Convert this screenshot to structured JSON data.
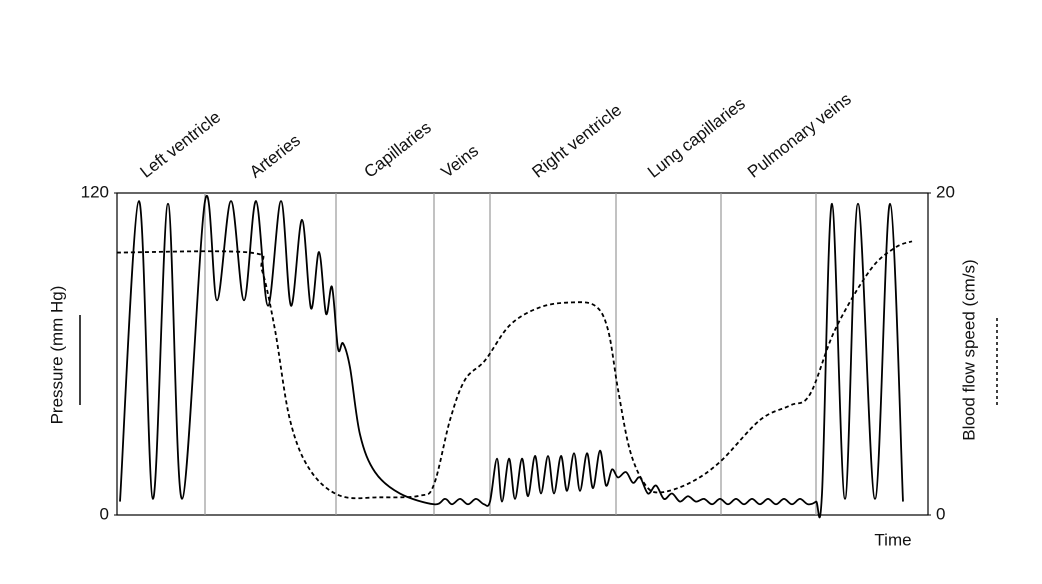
{
  "chart_data": {
    "type": "line",
    "x_label": "Time",
    "y_label": "Pressure (mm Hg)",
    "y2_label": "Blood flow speed (cm/s)",
    "xlim": [
      0,
      811
    ],
    "ylim": [
      0,
      120
    ],
    "yticks": [
      0,
      120
    ],
    "y2lim": [
      0,
      20
    ],
    "y2ticks": [
      0,
      20
    ],
    "regions": [
      "Left ventricle",
      "Arteries",
      "Capillaries",
      "Veins",
      "Right ventricle",
      "Lung capillaries",
      "Pulmonary veins"
    ],
    "boundaries": [
      88,
      219,
      317,
      373,
      499,
      604,
      699
    ],
    "series": [
      {
        "color": "#000000",
        "line_style": "solid",
        "axis": "y",
        "x": [
          3,
          22,
          36,
          51,
          65,
          88,
          100,
          114,
          127,
          139,
          151,
          164,
          174,
          185,
          194,
          202,
          209,
          215,
          221,
          226,
          233,
          243,
          258,
          283,
          317,
          328,
          335,
          343,
          351,
          359,
          367,
          373,
          380,
          385,
          392,
          398,
          405,
          411,
          418,
          424,
          431,
          437,
          444,
          450,
          457,
          463,
          470,
          476,
          483,
          489,
          495,
          501,
          509,
          516,
          523,
          531,
          539,
          547,
          555,
          563,
          571,
          579,
          587,
          595,
          603,
          611,
          619,
          627,
          635,
          643,
          651,
          659,
          667,
          675,
          683,
          691,
          699,
          705,
          715,
          728,
          741,
          758,
          773,
          786
        ],
        "values": [
          5,
          117,
          6,
          116,
          6,
          117,
          80,
          117,
          80,
          117,
          78,
          117,
          78,
          110,
          77,
          98,
          75,
          85,
          62,
          64,
          55,
          30,
          16,
          8,
          4,
          6,
          4,
          6,
          4,
          6,
          4,
          5,
          21,
          5,
          21,
          6,
          21,
          7,
          22,
          8,
          22,
          8,
          22,
          9,
          23,
          9,
          23,
          10,
          24,
          11,
          17,
          14,
          16,
          12,
          14,
          8,
          11,
          6,
          8,
          5,
          7,
          5,
          6,
          4,
          6,
          4,
          6,
          4,
          6,
          4,
          6,
          4,
          6,
          4,
          6,
          4,
          5,
          8,
          116,
          6,
          116,
          6,
          116,
          5
        ]
      },
      {
        "color": "#000000",
        "line_style": "dashed",
        "axis": "y2",
        "x": [
          0,
          133,
          145,
          158,
          173,
          193,
          223,
          263,
          303,
          317,
          333,
          348,
          368,
          393,
          423,
          453,
          478,
          491,
          501,
          513,
          528,
          543,
          573,
          603,
          643,
          673,
          693,
          718,
          753,
          778,
          795
        ],
        "values": [
          16.3,
          16.3,
          15.2,
          11.5,
          5.9,
          2.8,
          1.2,
          1.1,
          1.2,
          1.9,
          5.9,
          8.4,
          9.6,
          11.8,
          12.9,
          13.2,
          13.0,
          11.5,
          7.8,
          4.0,
          1.9,
          1.4,
          2.0,
          3.3,
          5.9,
          6.8,
          7.5,
          11.5,
          15.2,
          16.6,
          17.0
        ]
      }
    ]
  }
}
